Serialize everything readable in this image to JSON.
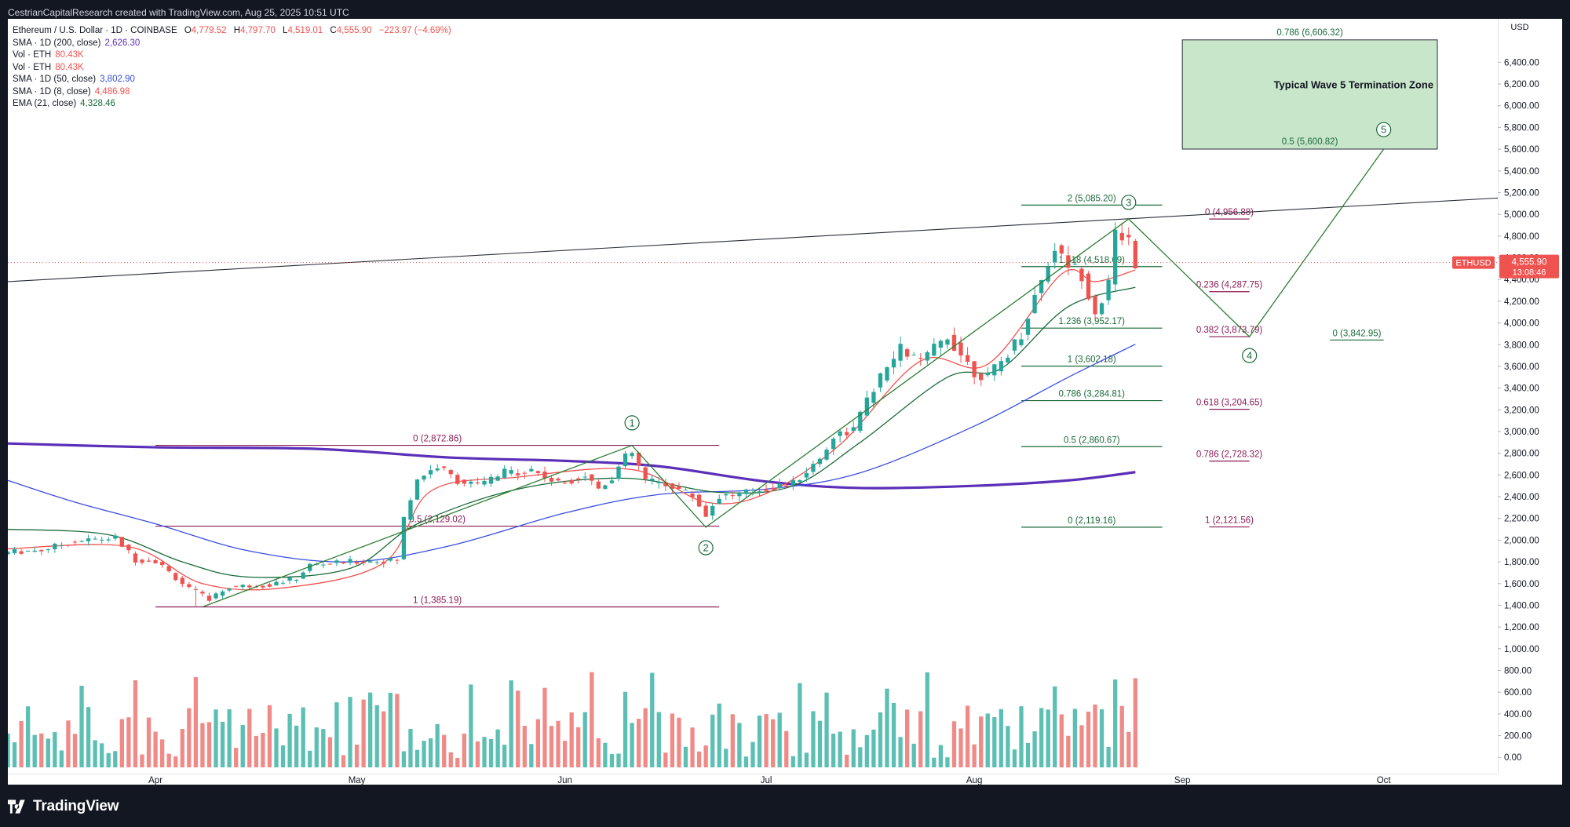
{
  "header": {
    "author_line": "CestrianCapitalResearch created with TradingView.com, Aug 25, 2025 10:51 UTC"
  },
  "legend": {
    "symbol": "Ethereum / U.S. Dollar · 1D · COINBASE",
    "ohlc": [
      {
        "label": "O",
        "value": "4,779.52"
      },
      {
        "label": "H",
        "value": "4,797.70"
      },
      {
        "label": "L",
        "value": "4,519.01"
      },
      {
        "label": "C",
        "value": "4,555.90"
      }
    ],
    "change": "−223.97 (−4.69%)",
    "indicators": [
      {
        "label": "SMA · 1D (200, close)",
        "value": "2,626.30",
        "color": "#5b2fb8"
      },
      {
        "label": "Vol · ETH",
        "value": "80.43K",
        "color": "#ef5350"
      },
      {
        "label": "Vol · ETH",
        "value": "80.43K",
        "color": "#ef5350"
      },
      {
        "label": "SMA · 1D (50, close)",
        "value": "3,802.90",
        "color": "#3a4ee0"
      },
      {
        "label": "SMA · 1D (8, close)",
        "value": "4,486.98",
        "color": "#ef5350"
      },
      {
        "label": "EMA (21, close)",
        "value": "4,328.46",
        "color": "#1b6a3a"
      }
    ]
  },
  "footer": {
    "brand": "TradingView",
    "logo_icon": "tradingview-logo-icon"
  },
  "colors": {
    "up": "#26a69a",
    "down": "#ef5350",
    "vol_up": "#5cbfb4",
    "vol_down": "#f08a87",
    "sma200": "#5b2fb8",
    "sma50": "#3a4ee0",
    "sma8": "#ef5350",
    "ema21": "#1b6a3a",
    "fib_magenta": "#8b1a55",
    "fib_green": "#1b6a3a",
    "zone_fill": "#c8e6c9",
    "price_tag": "#ef5350"
  },
  "chart_data": {
    "type": "candlestick",
    "title": "Ethereum / U.S. Dollar · 1D · COINBASE",
    "y_axis": {
      "label": "USD",
      "range": [
        -150,
        6800
      ],
      "ticks": [
        "6,400.00",
        "6,200.00",
        "6,000.00",
        "5,800.00",
        "5,600.00",
        "5,400.00",
        "5,200.00",
        "5,000.00",
        "4,800.00",
        "4,600.00",
        "4,400.00",
        "4,200.00",
        "4,000.00",
        "3,800.00",
        "3,600.00",
        "3,400.00",
        "3,200.00",
        "3,000.00",
        "2,800.00",
        "2,600.00",
        "2,400.00",
        "2,200.00",
        "2,000.00",
        "1,800.00",
        "1,600.00",
        "1,400.00",
        "1,200.00",
        "1,000.00",
        "800.00",
        "600.00",
        "400.00",
        "200.00",
        "0.00"
      ]
    },
    "x_axis": {
      "ticks": [
        {
          "label": "Apr",
          "date": "2025-04-01"
        },
        {
          "label": "May",
          "date": "2025-05-01"
        },
        {
          "label": "Jun",
          "date": "2025-06-01"
        },
        {
          "label": "Jul",
          "date": "2025-07-01"
        },
        {
          "label": "Aug",
          "date": "2025-08-01"
        },
        {
          "label": "Sep",
          "date": "2025-09-01"
        },
        {
          "label": "Oct",
          "date": "2025-10-01"
        }
      ],
      "range": [
        "2025-03-10",
        "2025-10-18"
      ]
    },
    "current_price": {
      "symbol": "ETHUSD",
      "price": "4,555.90",
      "countdown": "13:08:46",
      "value": 4555.9
    },
    "anchors": [
      [
        "2025-03-10",
        1890
      ],
      [
        "2025-03-15",
        1910
      ],
      [
        "2025-03-20",
        1990
      ],
      [
        "2025-03-26",
        2020
      ],
      [
        "2025-03-29",
        1820
      ],
      [
        "2025-04-01",
        1810
      ],
      [
        "2025-04-06",
        1550
      ],
      [
        "2025-04-09",
        1460
      ],
      [
        "2025-04-12",
        1570
      ],
      [
        "2025-04-18",
        1590
      ],
      [
        "2025-04-22",
        1650
      ],
      [
        "2025-04-24",
        1770
      ],
      [
        "2025-04-30",
        1800
      ],
      [
        "2025-05-05",
        1810
      ],
      [
        "2025-05-07",
        1820
      ],
      [
        "2025-05-08",
        2200
      ],
      [
        "2025-05-10",
        2570
      ],
      [
        "2025-05-13",
        2680
      ],
      [
        "2025-05-16",
        2550
      ],
      [
        "2025-05-19",
        2500
      ],
      [
        "2025-05-23",
        2620
      ],
      [
        "2025-05-27",
        2650
      ],
      [
        "2025-05-31",
        2520
      ],
      [
        "2025-06-04",
        2600
      ],
      [
        "2025-06-06",
        2480
      ],
      [
        "2025-06-08",
        2580
      ],
      [
        "2025-06-10",
        2760
      ],
      [
        "2025-06-11",
        2800
      ],
      [
        "2025-06-13",
        2550
      ],
      [
        "2025-06-17",
        2500
      ],
      [
        "2025-06-20",
        2410
      ],
      [
        "2025-06-22",
        2230
      ],
      [
        "2025-06-24",
        2410
      ],
      [
        "2025-06-27",
        2420
      ],
      [
        "2025-07-01",
        2480
      ],
      [
        "2025-07-05",
        2520
      ],
      [
        "2025-07-09",
        2750
      ],
      [
        "2025-07-11",
        2960
      ],
      [
        "2025-07-14",
        3020
      ],
      [
        "2025-07-17",
        3400
      ],
      [
        "2025-07-21",
        3760
      ],
      [
        "2025-07-24",
        3640
      ],
      [
        "2025-07-28",
        3880
      ],
      [
        "2025-08-01",
        3550
      ],
      [
        "2025-08-03",
        3500
      ],
      [
        "2025-08-05",
        3640
      ],
      [
        "2025-08-08",
        3900
      ],
      [
        "2025-08-10",
        4250
      ],
      [
        "2025-08-13",
        4700
      ],
      [
        "2025-08-14",
        4600
      ],
      [
        "2025-08-17",
        4450
      ],
      [
        "2025-08-19",
        4100
      ],
      [
        "2025-08-21",
        4350
      ],
      [
        "2025-08-22",
        4820
      ],
      [
        "2025-08-24",
        4780
      ],
      [
        "2025-08-25",
        4556
      ]
    ],
    "moving_averages": [
      {
        "name": "SMA · 1D (200, close)",
        "color": "#5b2fb8",
        "width": 3.2,
        "points": [
          [
            "2025-03-10",
            2890
          ],
          [
            "2025-04-01",
            2855
          ],
          [
            "2025-04-25",
            2840
          ],
          [
            "2025-05-15",
            2760
          ],
          [
            "2025-06-01",
            2730
          ],
          [
            "2025-06-15",
            2680
          ],
          [
            "2025-07-01",
            2540
          ],
          [
            "2025-07-15",
            2480
          ],
          [
            "2025-08-01",
            2500
          ],
          [
            "2025-08-15",
            2550
          ],
          [
            "2025-08-25",
            2626
          ]
        ]
      },
      {
        "name": "SMA · 1D (50, close)",
        "color": "#3a4ee0",
        "width": 1.3,
        "points": [
          [
            "2025-03-10",
            2550
          ],
          [
            "2025-03-20",
            2350
          ],
          [
            "2025-04-01",
            2150
          ],
          [
            "2025-04-15",
            1900
          ],
          [
            "2025-04-30",
            1800
          ],
          [
            "2025-05-15",
            1950
          ],
          [
            "2025-06-01",
            2250
          ],
          [
            "2025-06-15",
            2420
          ],
          [
            "2025-07-01",
            2470
          ],
          [
            "2025-07-15",
            2620
          ],
          [
            "2025-08-01",
            3050
          ],
          [
            "2025-08-15",
            3500
          ],
          [
            "2025-08-25",
            3803
          ]
        ]
      },
      {
        "name": "EMA (21, close)",
        "color": "#1b6a3a",
        "width": 1.3,
        "points": [
          [
            "2025-03-10",
            2100
          ],
          [
            "2025-03-25",
            2050
          ],
          [
            "2025-04-05",
            1800
          ],
          [
            "2025-04-15",
            1660
          ],
          [
            "2025-04-30",
            1740
          ],
          [
            "2025-05-10",
            2150
          ],
          [
            "2025-05-25",
            2470
          ],
          [
            "2025-06-10",
            2570
          ],
          [
            "2025-06-24",
            2440
          ],
          [
            "2025-07-05",
            2500
          ],
          [
            "2025-07-15",
            2900
          ],
          [
            "2025-07-28",
            3500
          ],
          [
            "2025-08-05",
            3580
          ],
          [
            "2025-08-15",
            4150
          ],
          [
            "2025-08-25",
            4328
          ]
        ]
      },
      {
        "name": "SMA · 1D (8, close)",
        "color": "#ef5350",
        "width": 1.3,
        "points": [
          [
            "2025-03-10",
            1920
          ],
          [
            "2025-03-28",
            1940
          ],
          [
            "2025-04-08",
            1600
          ],
          [
            "2025-04-20",
            1560
          ],
          [
            "2025-05-05",
            1790
          ],
          [
            "2025-05-12",
            2450
          ],
          [
            "2025-05-25",
            2580
          ],
          [
            "2025-06-11",
            2650
          ],
          [
            "2025-06-22",
            2350
          ],
          [
            "2025-07-01",
            2430
          ],
          [
            "2025-07-12",
            2880
          ],
          [
            "2025-07-24",
            3650
          ],
          [
            "2025-08-03",
            3620
          ],
          [
            "2025-08-14",
            4450
          ],
          [
            "2025-08-19",
            4380
          ],
          [
            "2025-08-25",
            4487
          ]
        ]
      }
    ],
    "trendline": {
      "from": [
        "2025-03-10",
        4380
      ],
      "to": [
        "2025-10-18",
        5150
      ]
    },
    "wave_path": [
      [
        "2025-04-08",
        1385
      ],
      [
        "2025-06-11",
        2872
      ],
      [
        "2025-06-22",
        2119
      ],
      [
        "2025-08-24",
        4957
      ],
      [
        "2025-09-11",
        3873
      ],
      [
        "2025-10-01",
        5601
      ]
    ],
    "wave_labels": [
      {
        "label": "1",
        "date": "2025-06-11",
        "value": 3080
      },
      {
        "label": "2",
        "date": "2025-06-22",
        "value": 1930
      },
      {
        "label": "3",
        "date": "2025-08-24",
        "value": 5110
      },
      {
        "label": "4",
        "date": "2025-09-11",
        "value": 3700
      },
      {
        "label": "5",
        "date": "2025-10-01",
        "value": 5780
      }
    ],
    "fib_levels": [
      {
        "group": "a",
        "color": "#8b1a55",
        "from": "2025-04-01",
        "to": "2025-06-24",
        "value": 2872.86,
        "label": "0 (2,872.86)",
        "label_pos": "above",
        "label_at": "center"
      },
      {
        "group": "a",
        "color": "#8b1a55",
        "from": "2025-04-01",
        "to": "2025-06-24",
        "value": 2129.02,
        "label": "0.5 (2,129.02)",
        "label_pos": "above",
        "label_at": "center"
      },
      {
        "group": "a",
        "color": "#8b1a55",
        "from": "2025-04-01",
        "to": "2025-06-24",
        "value": 1385.19,
        "label": "1 (1,385.19)",
        "label_pos": "above",
        "label_at": "center"
      },
      {
        "group": "b",
        "color": "#1b6a3a",
        "from": "2025-08-08",
        "to": "2025-08-29",
        "value": 5085.2,
        "label": "2 (5,085.20)",
        "label_pos": "above",
        "label_at": "center"
      },
      {
        "group": "b",
        "color": "#1b6a3a",
        "from": "2025-08-08",
        "to": "2025-08-29",
        "value": 4518.69,
        "label": "1.618 (4,518.69)",
        "label_pos": "above",
        "label_at": "center"
      },
      {
        "group": "b",
        "color": "#1b6a3a",
        "from": "2025-08-08",
        "to": "2025-08-29",
        "value": 3952.17,
        "label": "1.236 (3,952.17)",
        "label_pos": "above",
        "label_at": "center"
      },
      {
        "group": "b",
        "color": "#1b6a3a",
        "from": "2025-08-08",
        "to": "2025-08-29",
        "value": 3602.18,
        "label": "1 (3,602.18)",
        "label_pos": "above",
        "label_at": "center"
      },
      {
        "group": "b",
        "color": "#1b6a3a",
        "from": "2025-08-08",
        "to": "2025-08-29",
        "value": 3284.81,
        "label": "0.786 (3,284.81)",
        "label_pos": "above",
        "label_at": "center"
      },
      {
        "group": "b",
        "color": "#1b6a3a",
        "from": "2025-08-08",
        "to": "2025-08-29",
        "value": 2860.67,
        "label": "0.5 (2,860.67)",
        "label_pos": "above",
        "label_at": "center"
      },
      {
        "group": "b",
        "color": "#1b6a3a",
        "from": "2025-08-08",
        "to": "2025-08-29",
        "value": 2119.16,
        "label": "0 (2,119.16)",
        "label_pos": "above",
        "label_at": "center"
      },
      {
        "group": "c",
        "color": "#8b1a55",
        "from": "2025-09-05",
        "to": "2025-09-11",
        "value": 4956.88,
        "label": "0 (4,956.88)",
        "label_pos": "above",
        "label_at": "center"
      },
      {
        "group": "c",
        "color": "#8b1a55",
        "from": "2025-09-05",
        "to": "2025-09-11",
        "value": 4287.75,
        "label": "0.236 (4,287.75)",
        "label_pos": "above",
        "label_at": "center"
      },
      {
        "group": "c",
        "color": "#8b1a55",
        "from": "2025-09-05",
        "to": "2025-09-11",
        "value": 3873.79,
        "label": "0.382 (3,873.79)",
        "label_pos": "above",
        "label_at": "center"
      },
      {
        "group": "c",
        "color": "#8b1a55",
        "from": "2025-09-05",
        "to": "2025-09-11",
        "value": 3204.65,
        "label": "0.618 (3,204.65)",
        "label_pos": "above",
        "label_at": "center"
      },
      {
        "group": "c",
        "color": "#8b1a55",
        "from": "2025-09-05",
        "to": "2025-09-11",
        "value": 2728.32,
        "label": "0.786 (2,728.32)",
        "label_pos": "above",
        "label_at": "center"
      },
      {
        "group": "c",
        "color": "#8b1a55",
        "from": "2025-09-05",
        "to": "2025-09-11",
        "value": 2121.56,
        "label": "1 (2,121.56)",
        "label_pos": "above",
        "label_at": "center"
      },
      {
        "group": "d",
        "color": "#1b6a3a",
        "from": "2025-09-23",
        "to": "2025-10-01",
        "value": 3842.95,
        "label": "0 (3,842.95)",
        "label_pos": "above",
        "label_at": "center"
      }
    ],
    "zone": {
      "label": "Typical Wave 5 Termination Zone",
      "from": "2025-09-01",
      "to": "2025-10-09",
      "top": 6606.32,
      "bottom": 5600.82,
      "top_label": "0.786 (6,606.32)",
      "bottom_label": "0.5 (5,600.82)",
      "color": "#c8e6c9"
    }
  }
}
